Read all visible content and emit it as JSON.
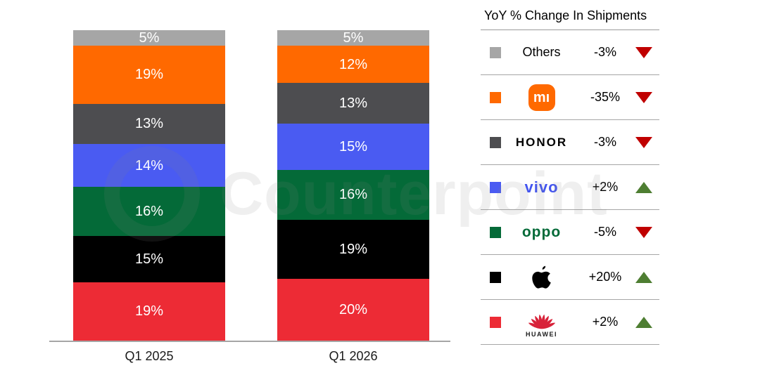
{
  "watermark": {
    "text": "Counterpoint"
  },
  "chart_data": {
    "type": "bar",
    "stacked": true,
    "stack_order": "bottom-to-top",
    "categories": [
      "Q1 2025",
      "Q1 2026"
    ],
    "series": [
      {
        "name": "HUAWEI",
        "color": "#ed2b35",
        "values": [
          19,
          20
        ]
      },
      {
        "name": "Apple",
        "color": "#000000",
        "values": [
          15,
          19
        ]
      },
      {
        "name": "OPPO",
        "color": "#046a38",
        "values": [
          16,
          16
        ]
      },
      {
        "name": "vivo",
        "color": "#4a5bf2",
        "values": [
          14,
          15
        ]
      },
      {
        "name": "HONOR",
        "color": "#4d4d50",
        "values": [
          13,
          13
        ]
      },
      {
        "name": "Xiaomi",
        "color": "#ff6900",
        "values": [
          19,
          12
        ]
      },
      {
        "name": "Others",
        "color": "#a6a6a6",
        "values": [
          5,
          5
        ]
      }
    ],
    "unit": "%",
    "title": "",
    "xlabel": "",
    "ylabel": "",
    "value_labels": "inside",
    "value_label_color": "#ffffff",
    "grid": false
  },
  "legend": {
    "title": "YoY % Change In Shipments",
    "colors": {
      "up": "#4e7e32",
      "down": "#c00000"
    },
    "rows": [
      {
        "id": "others",
        "type": "text",
        "label": "Others",
        "swatch": "#a6a6a6",
        "logo_color": "#000000",
        "change": "-3%",
        "direction": "down"
      },
      {
        "id": "xiaomi",
        "type": "mi-badge",
        "label": "mı",
        "swatch": "#ff6900",
        "logo_color": "#ff6900",
        "change": "-35%",
        "direction": "down"
      },
      {
        "id": "honor",
        "type": "wordmark",
        "label": "HONOR",
        "swatch": "#4d4d50",
        "logo_color": "#000000",
        "change": "-3%",
        "direction": "down"
      },
      {
        "id": "vivo",
        "type": "wordmark",
        "label": "vivo",
        "swatch": "#4a5bf2",
        "logo_color": "#4355f0",
        "change": "+2%",
        "direction": "up"
      },
      {
        "id": "oppo",
        "type": "wordmark",
        "label": "oppo",
        "swatch": "#046a38",
        "logo_color": "#046a38",
        "change": "-5%",
        "direction": "down"
      },
      {
        "id": "apple",
        "type": "apple-logo",
        "label": "",
        "swatch": "#000000",
        "logo_color": "#000000",
        "change": "+20%",
        "direction": "up"
      },
      {
        "id": "huawei",
        "type": "huawei-logo",
        "label": "HUAWEI",
        "swatch": "#ed2b35",
        "logo_color": "#d8233a",
        "change": "+2%",
        "direction": "up"
      }
    ]
  }
}
